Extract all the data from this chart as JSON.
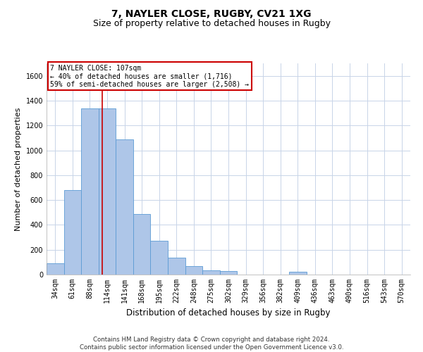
{
  "title": "7, NAYLER CLOSE, RUGBY, CV21 1XG",
  "subtitle": "Size of property relative to detached houses in Rugby",
  "xlabel": "Distribution of detached houses by size in Rugby",
  "ylabel": "Number of detached properties",
  "categories": [
    "34sqm",
    "61sqm",
    "88sqm",
    "114sqm",
    "141sqm",
    "168sqm",
    "195sqm",
    "222sqm",
    "248sqm",
    "275sqm",
    "302sqm",
    "329sqm",
    "356sqm",
    "382sqm",
    "409sqm",
    "436sqm",
    "463sqm",
    "490sqm",
    "516sqm",
    "543sqm",
    "570sqm"
  ],
  "values": [
    90,
    680,
    1340,
    1340,
    1090,
    490,
    270,
    135,
    70,
    35,
    30,
    0,
    0,
    0,
    20,
    0,
    0,
    0,
    0,
    0,
    0
  ],
  "bar_color": "#aec6e8",
  "bar_edge_color": "#5b9bd5",
  "bar_width": 1.0,
  "ylim": [
    0,
    1700
  ],
  "yticks": [
    0,
    200,
    400,
    600,
    800,
    1000,
    1200,
    1400,
    1600
  ],
  "grid_color": "#c8d4e8",
  "property_line_x": 2.73,
  "annotation_text": "7 NAYLER CLOSE: 107sqm\n← 40% of detached houses are smaller (1,716)\n59% of semi-detached houses are larger (2,508) →",
  "annotation_box_color": "#ffffff",
  "annotation_box_edge": "#cc0000",
  "line_color": "#cc0000",
  "footer": "Contains HM Land Registry data © Crown copyright and database right 2024.\nContains public sector information licensed under the Open Government Licence v3.0.",
  "bg_color": "#ffffff",
  "title_fontsize": 10,
  "subtitle_fontsize": 9,
  "tick_fontsize": 7,
  "ylabel_fontsize": 8,
  "xlabel_fontsize": 8.5
}
